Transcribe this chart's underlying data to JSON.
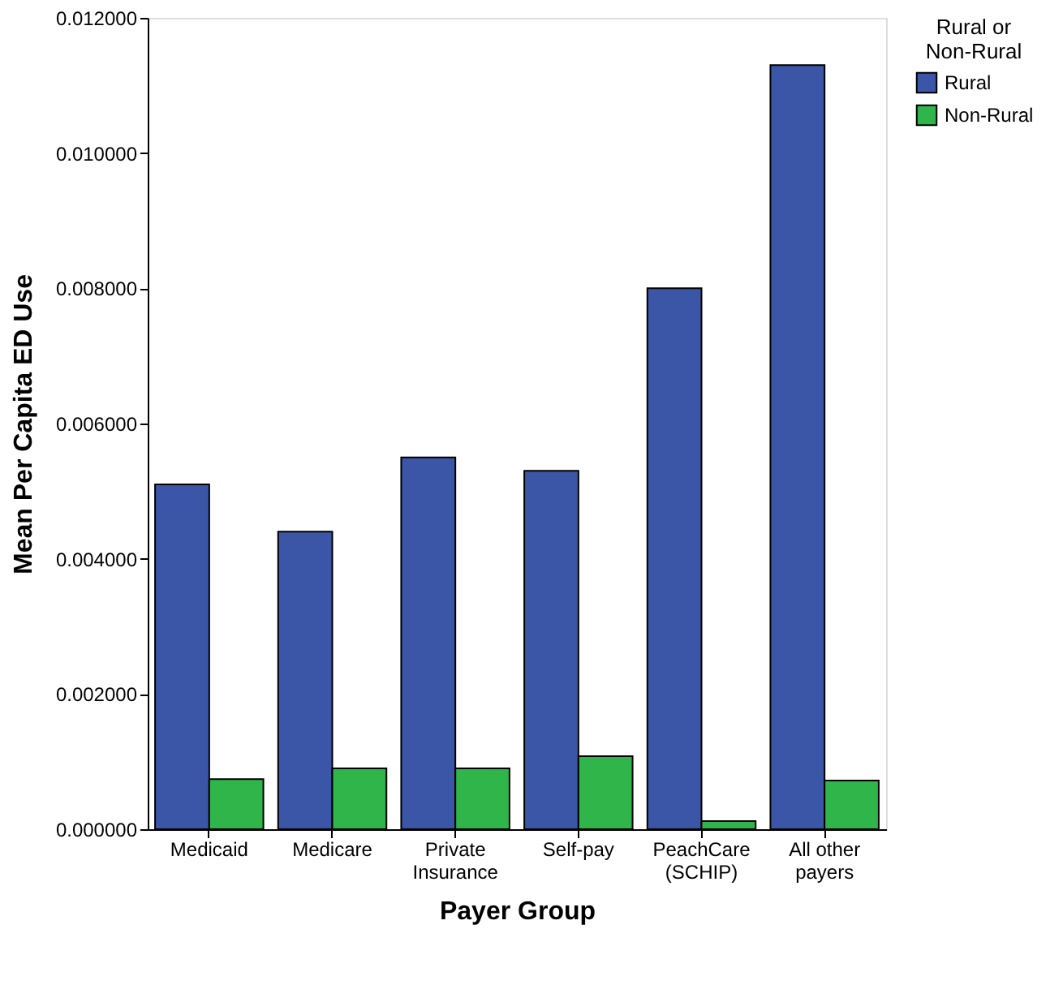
{
  "chart_data": {
    "type": "bar",
    "xlabel": "Payer Group",
    "ylabel": "Mean Per Capita ED Use",
    "legend_title": "Rural or\nNon-Rural",
    "categories": [
      "Medicaid",
      "Medicare",
      "Private\nInsurance",
      "Self-pay",
      "PeachCare\n(SCHIP)",
      "All other\npayers"
    ],
    "series": [
      {
        "name": "Rural",
        "color": "#3b56a6",
        "values": [
          0.0051,
          0.0044,
          0.0055,
          0.0053,
          0.008,
          0.0113
        ]
      },
      {
        "name": "Non-Rural",
        "color": "#30b54a",
        "values": [
          0.00074,
          0.0009,
          0.0009,
          0.00108,
          0.00012,
          0.00072
        ]
      }
    ],
    "ylim": [
      0,
      0.012
    ],
    "yticks": [
      {
        "value": 0,
        "label": "0.000000"
      },
      {
        "value": 0.002,
        "label": "0.002000"
      },
      {
        "value": 0.004,
        "label": "0.004000"
      },
      {
        "value": 0.006,
        "label": "0.006000"
      },
      {
        "value": 0.008,
        "label": "0.008000"
      },
      {
        "value": 0.01,
        "label": "0.010000"
      },
      {
        "value": 0.012,
        "label": "0.012000"
      }
    ],
    "grid": false,
    "legend": "top right"
  }
}
